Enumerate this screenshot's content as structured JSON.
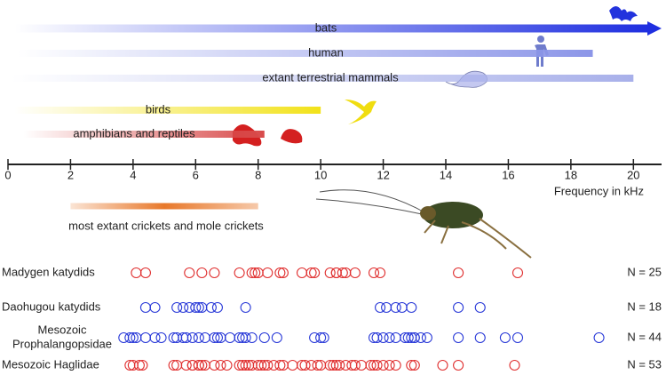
{
  "chart_data": {
    "type": "range-dot",
    "xlim": [
      0,
      20.9
    ],
    "xticks": [
      0,
      2,
      4,
      6,
      8,
      10,
      12,
      14,
      16,
      18,
      20
    ],
    "xlabel": "Frequency in kHz",
    "ranges": [
      {
        "name": "bats",
        "start": 0.2,
        "end": 20.9,
        "color": "#1f2fe0",
        "arrow": true
      },
      {
        "name": "human",
        "start": 0.3,
        "end": 18.7,
        "color": "#8c96e8",
        "arrow": false
      },
      {
        "name": "extant terrestrial mammals",
        "start": 0.1,
        "end": 20.0,
        "color": "#a8b0ea",
        "arrow": false
      },
      {
        "name": "birds",
        "start": 0.2,
        "end": 10.0,
        "color": "#f2e21a",
        "arrow": false
      },
      {
        "name": "amphibians and reptiles",
        "start": 0.5,
        "end": 8.2,
        "color": "#d84a4a",
        "arrow": false
      },
      {
        "name": "most extant crickets and mole crickets",
        "start": 2.0,
        "end": 8.0,
        "color": "#e8782a",
        "arrow": false
      }
    ],
    "series": [
      {
        "name": [
          "Madygen katydids"
        ],
        "color": "#e03030",
        "n_label": "N = 25",
        "values": [
          4.1,
          4.4,
          5.8,
          6.2,
          6.6,
          7.4,
          7.8,
          7.9,
          8.0,
          8.3,
          8.7,
          8.8,
          9.4,
          9.7,
          9.8,
          10.3,
          10.5,
          10.5,
          10.7,
          10.8,
          11.1,
          11.7,
          11.9,
          14.4,
          16.3
        ]
      },
      {
        "name": [
          "Daohugou katydids"
        ],
        "color": "#2a3ad8",
        "n_label": "N = 18",
        "values": [
          4.4,
          4.7,
          5.4,
          5.6,
          5.8,
          6.0,
          6.1,
          6.2,
          6.5,
          6.7,
          7.6,
          11.9,
          12.1,
          12.4,
          12.6,
          12.9,
          14.4,
          15.1
        ]
      },
      {
        "name": [
          "Mesozoic",
          "Prophalangopsidae"
        ],
        "color": "#2a3ad8",
        "n_label": "N = 44",
        "values": [
          3.7,
          3.9,
          4.0,
          4.1,
          4.4,
          4.7,
          4.9,
          5.3,
          5.4,
          5.6,
          5.7,
          5.9,
          6.1,
          6.3,
          6.6,
          6.7,
          6.8,
          7.1,
          7.4,
          7.5,
          7.6,
          7.8,
          8.2,
          8.6,
          9.8,
          10.0,
          10.1,
          11.7,
          11.8,
          12.0,
          12.2,
          12.4,
          12.7,
          12.8,
          12.9,
          13.0,
          13.0,
          13.2,
          13.4,
          14.4,
          15.1,
          15.9,
          16.3,
          18.9
        ]
      },
      {
        "name": [
          "Mesozoic Haglidae"
        ],
        "color": "#e03030",
        "n_label": "N = 53",
        "values": [
          3.9,
          4.0,
          4.2,
          4.3,
          5.3,
          5.4,
          5.7,
          5.9,
          5.9,
          6.1,
          6.1,
          6.2,
          6.3,
          6.6,
          6.8,
          7.0,
          7.4,
          7.5,
          7.6,
          7.7,
          7.8,
          8.0,
          8.1,
          8.2,
          8.3,
          8.5,
          8.7,
          8.8,
          9.1,
          9.4,
          9.5,
          9.7,
          9.9,
          10.0,
          10.3,
          10.4,
          10.5,
          10.6,
          10.8,
          11.0,
          11.1,
          11.3,
          11.6,
          11.7,
          11.8,
          12.0,
          12.2,
          12.4,
          12.9,
          13.0,
          13.9,
          14.4,
          16.2
        ]
      }
    ]
  }
}
